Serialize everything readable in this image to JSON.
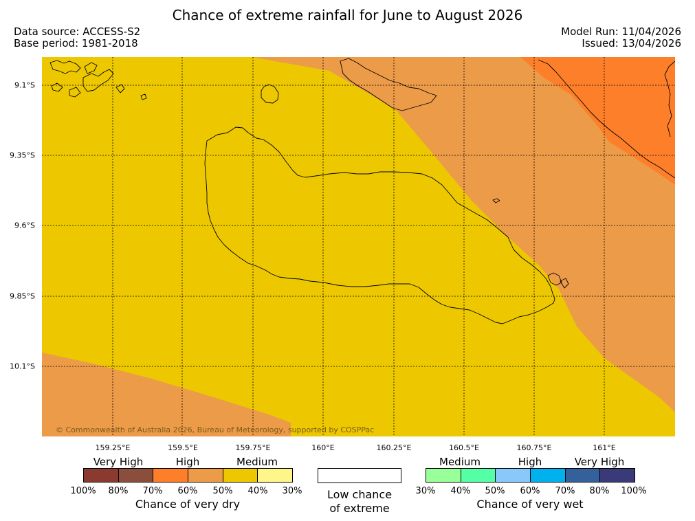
{
  "title": "Chance of extreme rainfall for June to August 2026",
  "meta": {
    "data_source": "Data source: ACCESS-S2",
    "base_period": "Base period: 1981-2018",
    "model_run": "Model Run: 11/04/2026",
    "issued": "Issued: 13/04/2026"
  },
  "map": {
    "colors": {
      "medium_dry": "#edc800",
      "high_dry": "#ec9b48",
      "high_dry_strong": "#fe7f2a",
      "coastline": "#000000",
      "gridline": "#000000"
    },
    "latitudes": [
      "9.1°S",
      "9.35°S",
      "9.6°S",
      "9.85°S",
      "10.1°S"
    ],
    "longitudes": [
      "159.25°E",
      "159.5°E",
      "159.75°E",
      "160°E",
      "160.25°E",
      "160.5°E",
      "160.75°E",
      "161°E"
    ],
    "copyright": "© Commonwealth of Australia 2026, Bureau of Meteorology, supported by COSPPac"
  },
  "legend": {
    "dry": {
      "groups": [
        "Very High",
        "High",
        "Medium"
      ],
      "swatches": [
        "#8b3a30",
        "#8b4e3c",
        "#fe7f2a",
        "#ec9b48",
        "#edc800",
        "#fff68a"
      ],
      "ticks": [
        "100%",
        "80%",
        "70%",
        "60%",
        "50%",
        "40%",
        "30%"
      ],
      "caption": "Chance of very dry"
    },
    "low": {
      "line1": "Low chance",
      "line2": "of extreme"
    },
    "wet": {
      "groups": [
        "Medium",
        "High",
        "Very High"
      ],
      "swatches": [
        "#99ff99",
        "#55ffa5",
        "#8ac8fa",
        "#00b1ee",
        "#34609c",
        "#3b3a78"
      ],
      "ticks": [
        "30%",
        "40%",
        "50%",
        "60%",
        "70%",
        "80%",
        "100%"
      ],
      "caption": "Chance of very wet"
    }
  }
}
